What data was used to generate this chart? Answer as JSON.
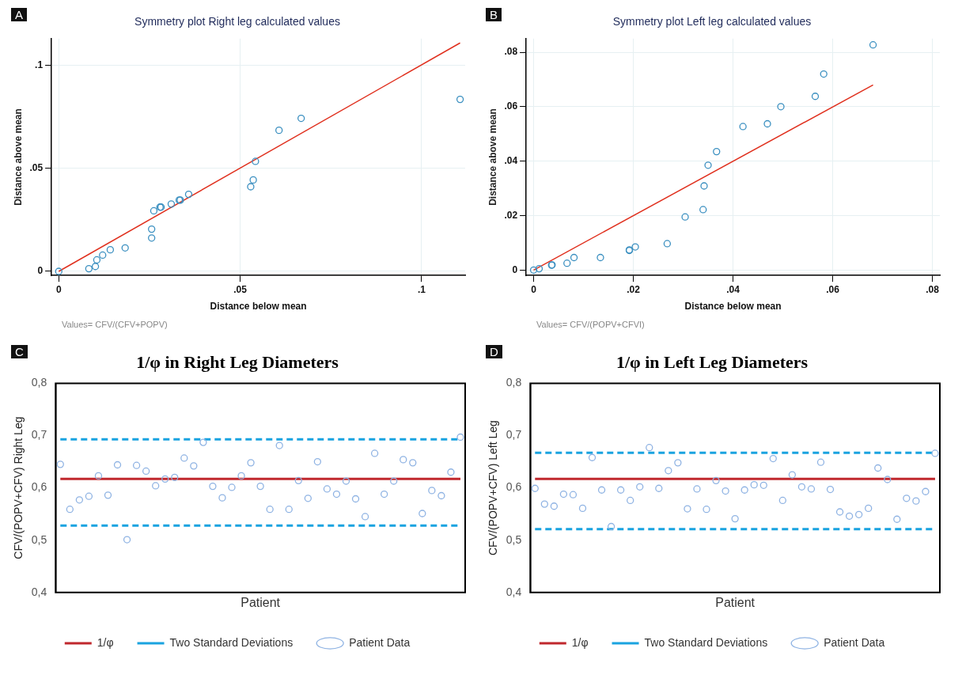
{
  "chart_data": [
    {
      "type": "scatter",
      "title": "Symmetry plot Right leg calculated values",
      "xlabel": "Distance below mean",
      "ylabel": "Distance above mean",
      "annotations": [
        "A",
        "Values= CFV/(CFV+POPV)"
      ],
      "grid": true,
      "legend": false,
      "xlim": [
        -0.002,
        0.112
      ],
      "xticks": [
        0,
        {
          "value": 0.05,
          "label": ".05"
        },
        {
          "value": 0.1,
          "label": ".1"
        }
      ],
      "ylim": [
        -0.002,
        0.113
      ],
      "yticks": [
        0,
        {
          "value": 0.05,
          "label": ".05"
        },
        {
          "value": 0.1,
          "label": ".1"
        }
      ],
      "series": [
        {
          "marker": "circle",
          "color": "#3a8fc0",
          "x": [
            0,
            0.0083,
            0.0101,
            0.0105,
            0.0121,
            0.0142,
            0.0183,
            0.0256,
            0.0256,
            0.0262,
            0.0279,
            0.0282,
            0.031,
            0.0332,
            0.0335,
            0.0358,
            0.0529,
            0.0536,
            0.0542,
            0.0607,
            0.0668,
            0.1106
          ],
          "values": [
            0,
            0.0013,
            0.0024,
            0.0056,
            0.0079,
            0.0105,
            0.0114,
            0.0162,
            0.0205,
            0.0294,
            0.0312,
            0.0312,
            0.0327,
            0.0346,
            0.0346,
            0.0374,
            0.0411,
            0.0444,
            0.0534,
            0.0685,
            0.0743,
            0.0835
          ]
        },
        {
          "type": "line",
          "color": "#e0301e",
          "x": [
            0,
            0.1106
          ],
          "values": [
            0,
            0.1109
          ]
        }
      ]
    },
    {
      "type": "scatter",
      "title": "Symmetry plot Left leg calculated values",
      "xlabel": "Distance below mean",
      "ylabel": "Distance above mean",
      "annotations": [
        "B",
        "Values= CFV/(POPV+CFVI)"
      ],
      "grid": true,
      "legend": false,
      "xlim": [
        -0.0015,
        0.0815
      ],
      "xticks": [
        0,
        {
          "value": 0.02,
          "label": ".02"
        },
        {
          "value": 0.04,
          "label": ".04"
        },
        {
          "value": 0.06,
          "label": ".06"
        },
        {
          "value": 0.08,
          "label": ".08"
        }
      ],
      "ylim": [
        -0.002,
        0.085
      ],
      "yticks": [
        0,
        {
          "value": 0.02,
          "label": ".02"
        },
        {
          "value": 0.04,
          "label": ".04"
        },
        {
          "value": 0.06,
          "label": ".06"
        },
        {
          "value": 0.08,
          "label": ".08"
        }
      ],
      "series": [
        {
          "marker": "circle",
          "color": "#3a8fc0",
          "x": [
            0,
            0.0011,
            0.0036,
            0.0037,
            0.0067,
            0.0081,
            0.0134,
            0.0192,
            0.0192,
            0.0204,
            0.0268,
            0.0304,
            0.034,
            0.0342,
            0.035,
            0.0367,
            0.042,
            0.0469,
            0.0496,
            0.0565,
            0.0582,
            0.0681
          ],
          "values": [
            0,
            0.0005,
            0.0018,
            0.0019,
            0.0025,
            0.0046,
            0.0046,
            0.0074,
            0.0072,
            0.0085,
            0.0097,
            0.0195,
            0.0222,
            0.0309,
            0.0385,
            0.0435,
            0.0527,
            0.0537,
            0.06,
            0.0638,
            0.072,
            0.0827
          ]
        },
        {
          "type": "line",
          "color": "#e0301e",
          "x": [
            0,
            0.0681
          ],
          "values": [
            0,
            0.068
          ]
        }
      ]
    },
    {
      "type": "scatter",
      "title": "1/φ in Right Leg Diameters",
      "xlabel": "Patient",
      "ylabel": "CFV/(POPV+CFV) Right Leg",
      "annotations": [
        "C"
      ],
      "legend": "bottom",
      "tick_labels": "y",
      "categories": [
        null,
        null,
        null,
        null,
        null,
        null,
        null,
        null,
        null,
        null,
        null,
        null,
        null,
        null,
        null,
        null,
        null,
        null,
        null,
        null,
        null,
        null,
        null,
        null,
        null,
        null,
        null,
        null,
        null,
        null,
        null,
        null,
        null,
        null,
        null,
        null,
        null,
        null,
        null,
        null,
        null,
        null,
        null
      ],
      "ylim": [
        0.4,
        0.8
      ],
      "yticks": [
        {
          "value": 0.4,
          "label": "0,4"
        },
        {
          "value": 0.5,
          "label": "0,5"
        },
        {
          "value": 0.6,
          "label": "0,6"
        },
        {
          "value": 0.7,
          "label": "0,7"
        },
        {
          "value": 0.8,
          "label": "0,8"
        }
      ],
      "series": [
        {
          "name": "1/φ",
          "type": "line",
          "color": "#c0282d",
          "values": [
            0.617,
            0.617,
            0.617,
            0.617,
            0.617,
            0.617,
            0.617,
            0.617,
            0.617,
            0.617,
            0.617,
            0.617,
            0.617,
            0.617,
            0.617,
            0.617,
            0.617,
            0.617,
            0.617,
            0.617,
            0.617,
            0.617,
            0.617,
            0.617,
            0.617,
            0.617,
            0.617,
            0.617,
            0.617,
            0.617,
            0.617,
            0.617,
            0.617,
            0.617,
            0.617,
            0.617,
            0.617,
            0.617,
            0.617,
            0.617,
            0.617,
            0.617,
            0.617
          ]
        },
        {
          "name": "Two Standard Deviations",
          "type": "line",
          "line_style": "dashed",
          "color": "#1aa3e0",
          "values": [
            0.693,
            0.693,
            0.693,
            0.693,
            0.693,
            0.693,
            0.693,
            0.693,
            0.693,
            0.693,
            0.693,
            0.693,
            0.693,
            0.693,
            0.693,
            0.693,
            0.693,
            0.693,
            0.693,
            0.693,
            0.693,
            0.693,
            0.693,
            0.693,
            0.693,
            0.693,
            0.693,
            0.693,
            0.693,
            0.693,
            0.693,
            0.693,
            0.693,
            0.693,
            0.693,
            0.693,
            0.693,
            0.693,
            0.693,
            0.693,
            0.693,
            0.693,
            0.693
          ]
        },
        {
          "type": "line",
          "line_style": "dashed",
          "color": "#1aa3e0",
          "values": [
            0.528,
            0.528,
            0.528,
            0.528,
            0.528,
            0.528,
            0.528,
            0.528,
            0.528,
            0.528,
            0.528,
            0.528,
            0.528,
            0.528,
            0.528,
            0.528,
            0.528,
            0.528,
            0.528,
            0.528,
            0.528,
            0.528,
            0.528,
            0.528,
            0.528,
            0.528,
            0.528,
            0.528,
            0.528,
            0.528,
            0.528,
            0.528,
            0.528,
            0.528,
            0.528,
            0.528,
            0.528,
            0.528,
            0.528,
            0.528,
            0.528,
            0.528,
            0.528
          ]
        },
        {
          "name": "Patient Data",
          "marker": "circle",
          "color": "#8fb3e3",
          "values": [
            0.645,
            0.559,
            0.577,
            0.584,
            0.623,
            0.586,
            0.644,
            0.501,
            0.643,
            0.632,
            0.604,
            0.617,
            0.62,
            0.657,
            0.642,
            0.687,
            0.603,
            0.581,
            0.601,
            0.623,
            0.648,
            0.603,
            0.559,
            0.681,
            0.559,
            0.614,
            0.58,
            0.65,
            0.598,
            0.588,
            0.613,
            0.579,
            0.545,
            0.666,
            0.588,
            0.613,
            0.654,
            0.648,
            0.551,
            0.595,
            0.585,
            0.63,
            0.697
          ]
        }
      ]
    },
    {
      "type": "scatter",
      "title": "1/φ in Left Leg Diameters",
      "xlabel": "Patient",
      "ylabel": "CFV/(POPV+CFV) Left Leg",
      "annotations": [
        "D"
      ],
      "legend": "bottom",
      "tick_labels": "y",
      "categories": [
        null,
        null,
        null,
        null,
        null,
        null,
        null,
        null,
        null,
        null,
        null,
        null,
        null,
        null,
        null,
        null,
        null,
        null,
        null,
        null,
        null,
        null,
        null,
        null,
        null,
        null,
        null,
        null,
        null,
        null,
        null,
        null,
        null,
        null,
        null,
        null,
        null,
        null,
        null,
        null,
        null,
        null,
        null
      ],
      "ylim": [
        0.4,
        0.8
      ],
      "yticks": [
        {
          "value": 0.4,
          "label": "0,4"
        },
        {
          "value": 0.5,
          "label": "0,5"
        },
        {
          "value": 0.6,
          "label": "0,6"
        },
        {
          "value": 0.7,
          "label": "0,7"
        },
        {
          "value": 0.8,
          "label": "0,8"
        }
      ],
      "series": [
        {
          "name": "1/φ",
          "type": "line",
          "color": "#c0282d",
          "values": [
            0.617,
            0.617,
            0.617,
            0.617,
            0.617,
            0.617,
            0.617,
            0.617,
            0.617,
            0.617,
            0.617,
            0.617,
            0.617,
            0.617,
            0.617,
            0.617,
            0.617,
            0.617,
            0.617,
            0.617,
            0.617,
            0.617,
            0.617,
            0.617,
            0.617,
            0.617,
            0.617,
            0.617,
            0.617,
            0.617,
            0.617,
            0.617,
            0.617,
            0.617,
            0.617,
            0.617,
            0.617,
            0.617,
            0.617,
            0.617,
            0.617,
            0.617,
            0.617
          ]
        },
        {
          "name": "Two Standard Deviations",
          "type": "line",
          "line_style": "dashed",
          "color": "#1aa3e0",
          "values": [
            0.667,
            0.667,
            0.667,
            0.667,
            0.667,
            0.667,
            0.667,
            0.667,
            0.667,
            0.667,
            0.667,
            0.667,
            0.667,
            0.667,
            0.667,
            0.667,
            0.667,
            0.667,
            0.667,
            0.667,
            0.667,
            0.667,
            0.667,
            0.667,
            0.667,
            0.667,
            0.667,
            0.667,
            0.667,
            0.667,
            0.667,
            0.667,
            0.667,
            0.667,
            0.667,
            0.667,
            0.667,
            0.667,
            0.667,
            0.667,
            0.667,
            0.667,
            0.667
          ]
        },
        {
          "type": "line",
          "line_style": "dashed",
          "color": "#1aa3e0",
          "values": [
            0.521,
            0.521,
            0.521,
            0.521,
            0.521,
            0.521,
            0.521,
            0.521,
            0.521,
            0.521,
            0.521,
            0.521,
            0.521,
            0.521,
            0.521,
            0.521,
            0.521,
            0.521,
            0.521,
            0.521,
            0.521,
            0.521,
            0.521,
            0.521,
            0.521,
            0.521,
            0.521,
            0.521,
            0.521,
            0.521,
            0.521,
            0.521,
            0.521,
            0.521,
            0.521,
            0.521,
            0.521,
            0.521,
            0.521,
            0.521,
            0.521,
            0.521,
            0.521
          ]
        },
        {
          "name": "Patient Data",
          "marker": "circle",
          "color": "#8fb3e3",
          "values": [
            0.599,
            0.569,
            0.565,
            0.588,
            0.587,
            0.561,
            0.658,
            0.596,
            0.526,
            0.596,
            0.576,
            0.602,
            0.677,
            0.599,
            0.633,
            0.648,
            0.56,
            0.598,
            0.559,
            0.614,
            0.594,
            0.541,
            0.596,
            0.606,
            0.605,
            0.656,
            0.576,
            0.625,
            0.602,
            0.598,
            0.649,
            0.597,
            0.554,
            0.546,
            0.549,
            0.561,
            0.638,
            0.616,
            0.54,
            0.58,
            0.575,
            0.593,
            0.666
          ]
        }
      ]
    }
  ]
}
